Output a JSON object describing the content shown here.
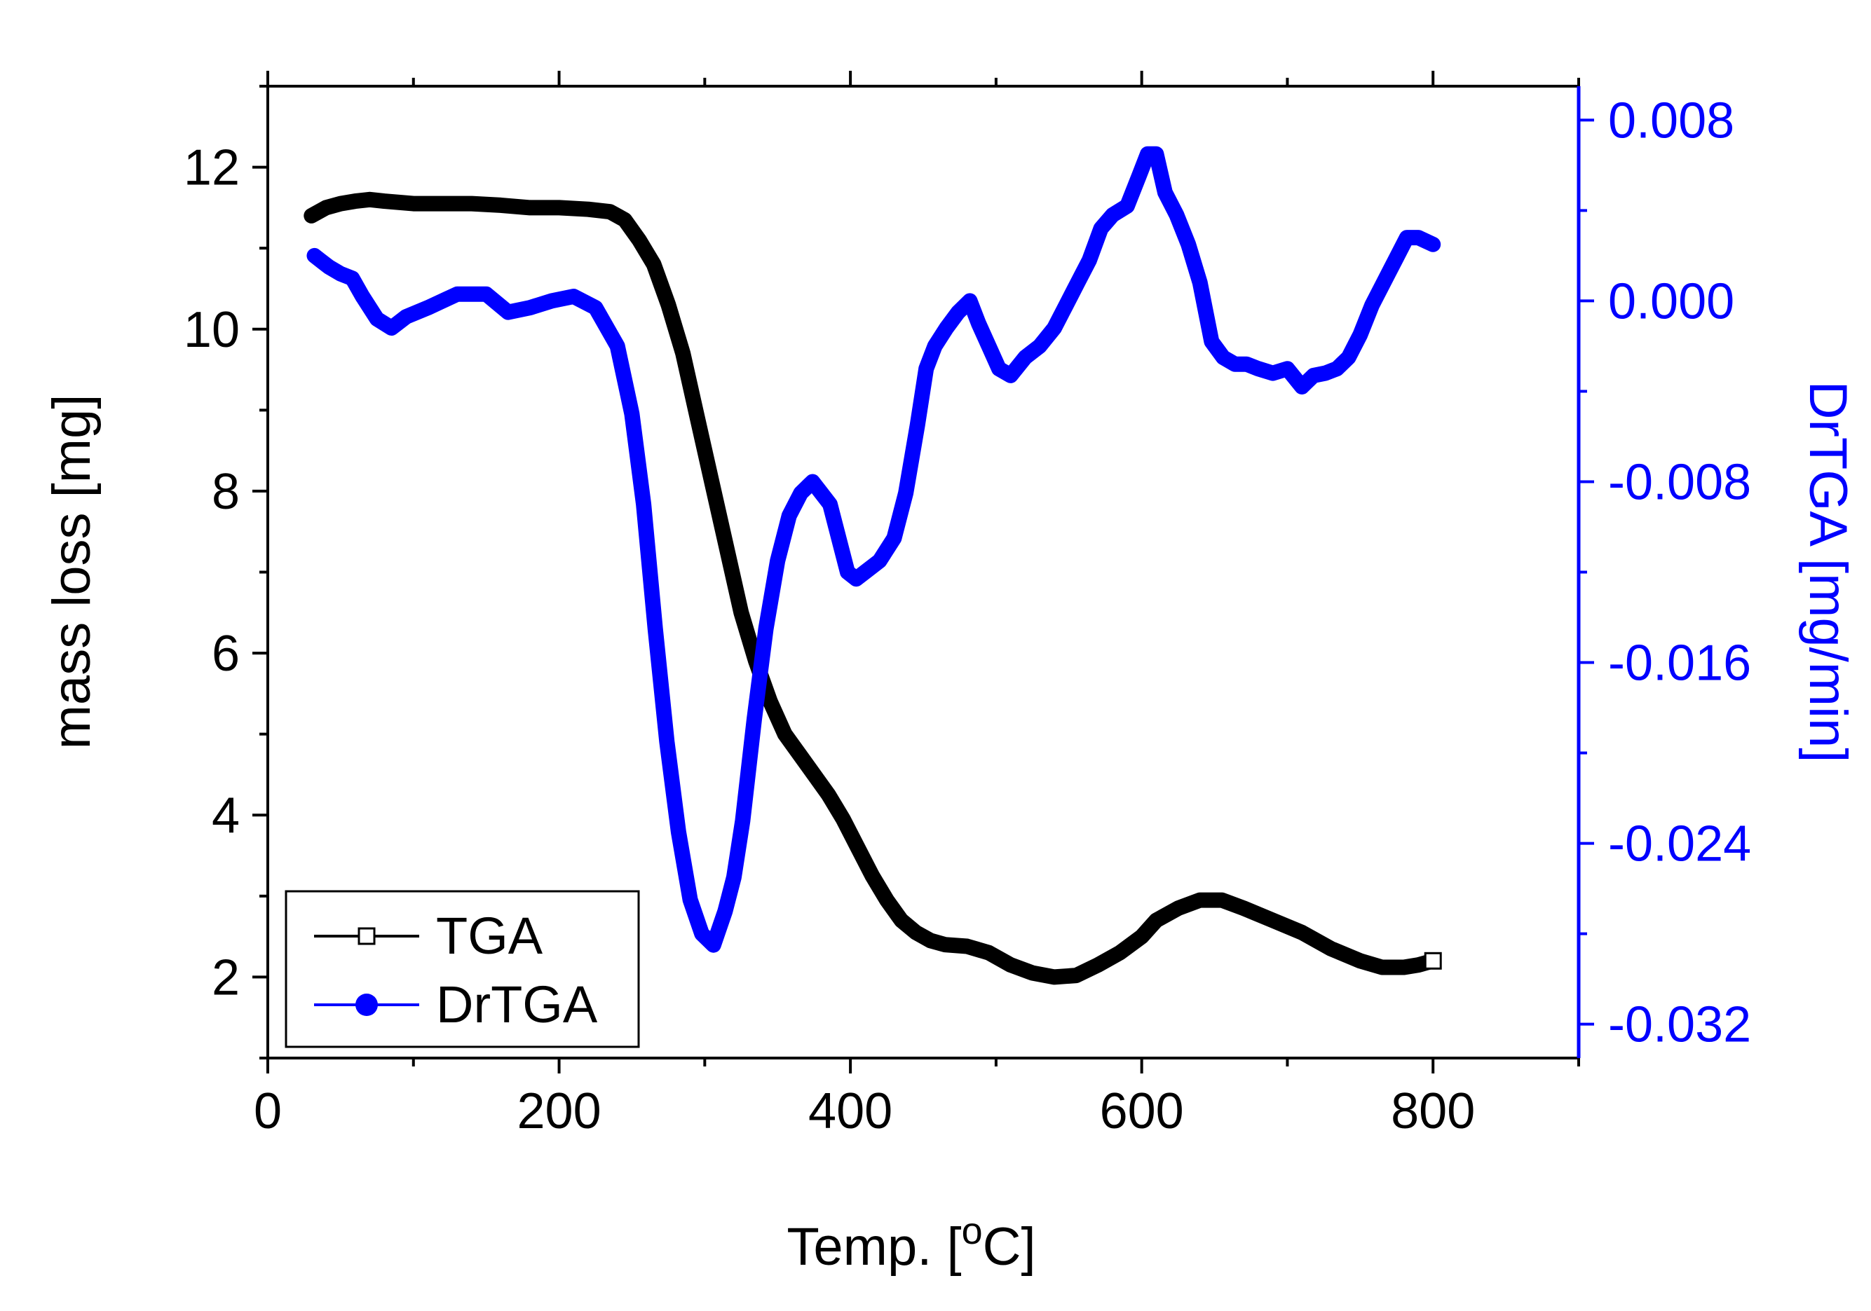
{
  "chart_data": {
    "type": "line",
    "title": "",
    "xlabel": "Temp. [",
    "xlabel_sup": "o",
    "xlabel_suffix": "C]",
    "ylabel_left": "mass loss [mg]",
    "ylabel_right": "DrTGA [mg/min]",
    "xlim": [
      0,
      900
    ],
    "ylim_left": [
      1,
      13
    ],
    "ylim_right": [
      -0.0335,
      0.0095
    ],
    "x_ticks": [
      0,
      200,
      400,
      600,
      800
    ],
    "x_tick_labels": [
      "0",
      "200",
      "400",
      "600",
      "800"
    ],
    "y_left_ticks": [
      2,
      4,
      6,
      8,
      10,
      12
    ],
    "y_left_tick_labels": [
      "2",
      "4",
      "6",
      "8",
      "10",
      "12"
    ],
    "y_right_ticks": [
      0.008,
      0.0,
      -0.008,
      -0.016,
      -0.024,
      -0.032
    ],
    "y_right_tick_labels": [
      "0.008",
      "0.000",
      "-0.008",
      "-0.016",
      "-0.024",
      "-0.032"
    ],
    "grid": false,
    "legend_position": "bottom-left",
    "colors": {
      "tga": "#000000",
      "drtga": "#0000ff",
      "right_axis": "#0000ff"
    },
    "series": [
      {
        "name": "TGA",
        "axis": "left",
        "color": "#000000",
        "marker": "open-square",
        "x": [
          30,
          40,
          50,
          60,
          70,
          80,
          100,
          120,
          140,
          160,
          180,
          200,
          220,
          235,
          245,
          255,
          265,
          275,
          285,
          295,
          305,
          315,
          325,
          335,
          345,
          355,
          365,
          375,
          385,
          395,
          405,
          415,
          425,
          435,
          445,
          455,
          465,
          480,
          495,
          510,
          525,
          540,
          555,
          570,
          585,
          600,
          610,
          625,
          640,
          655,
          670,
          690,
          710,
          730,
          750,
          765,
          780,
          790,
          800
        ],
        "y": [
          11.4,
          11.5,
          11.55,
          11.58,
          11.6,
          11.58,
          11.55,
          11.55,
          11.55,
          11.53,
          11.5,
          11.5,
          11.48,
          11.45,
          11.35,
          11.1,
          10.8,
          10.3,
          9.7,
          8.9,
          8.1,
          7.3,
          6.5,
          5.9,
          5.4,
          5.0,
          4.75,
          4.5,
          4.25,
          3.95,
          3.6,
          3.25,
          2.95,
          2.7,
          2.55,
          2.45,
          2.4,
          2.38,
          2.3,
          2.15,
          2.05,
          2.0,
          2.02,
          2.15,
          2.3,
          2.5,
          2.7,
          2.85,
          2.95,
          2.95,
          2.85,
          2.7,
          2.55,
          2.35,
          2.2,
          2.12,
          2.12,
          2.15,
          2.2
        ]
      },
      {
        "name": "DrTGA",
        "axis": "right",
        "color": "#0000ff",
        "marker": "filled-circle",
        "x": [
          32,
          36,
          42,
          50,
          58,
          65,
          75,
          85,
          95,
          110,
          130,
          150,
          165,
          180,
          195,
          210,
          225,
          240,
          250,
          258,
          266,
          274,
          282,
          290,
          298,
          306,
          314,
          320,
          326,
          334,
          342,
          350,
          358,
          366,
          374,
          380,
          386,
          392,
          398,
          404,
          410,
          420,
          430,
          438,
          446,
          452,
          458,
          466,
          474,
          482,
          488,
          495,
          502,
          510,
          520,
          530,
          540,
          548,
          556,
          564,
          572,
          580,
          590,
          598,
          604,
          610,
          616,
          624,
          632,
          640,
          648,
          656,
          664,
          672,
          680,
          690,
          700,
          710,
          718,
          726,
          734,
          742,
          750,
          758,
          766,
          774,
          782,
          790,
          800
        ],
        "y": [
          0.002,
          0.0018,
          0.0015,
          0.0012,
          0.001,
          0.0002,
          -0.0008,
          -0.0012,
          -0.0007,
          -0.0003,
          0.0003,
          0.0003,
          -0.0005,
          -0.0003,
          0.0,
          0.0002,
          -0.0003,
          -0.002,
          -0.005,
          -0.009,
          -0.0145,
          -0.0195,
          -0.0235,
          -0.0265,
          -0.028,
          -0.0285,
          -0.027,
          -0.0255,
          -0.023,
          -0.0185,
          -0.0145,
          -0.0115,
          -0.0095,
          -0.0085,
          -0.008,
          -0.0085,
          -0.009,
          -0.0105,
          -0.012,
          -0.0123,
          -0.012,
          -0.0115,
          -0.0105,
          -0.0085,
          -0.0055,
          -0.003,
          -0.002,
          -0.0012,
          -0.0005,
          0.0,
          -0.001,
          -0.002,
          -0.003,
          -0.0033,
          -0.0025,
          -0.002,
          -0.0012,
          -0.0002,
          0.0008,
          0.0018,
          0.0032,
          0.0038,
          0.0042,
          0.0055,
          0.0065,
          0.0065,
          0.0048,
          0.0038,
          0.0025,
          0.0008,
          -0.0018,
          -0.0025,
          -0.0028,
          -0.0028,
          -0.003,
          -0.0032,
          -0.003,
          -0.0038,
          -0.0033,
          -0.0032,
          -0.003,
          -0.0025,
          -0.0015,
          -0.0002,
          0.0008,
          0.0018,
          0.0028,
          0.0028,
          0.0025
        ]
      }
    ]
  }
}
